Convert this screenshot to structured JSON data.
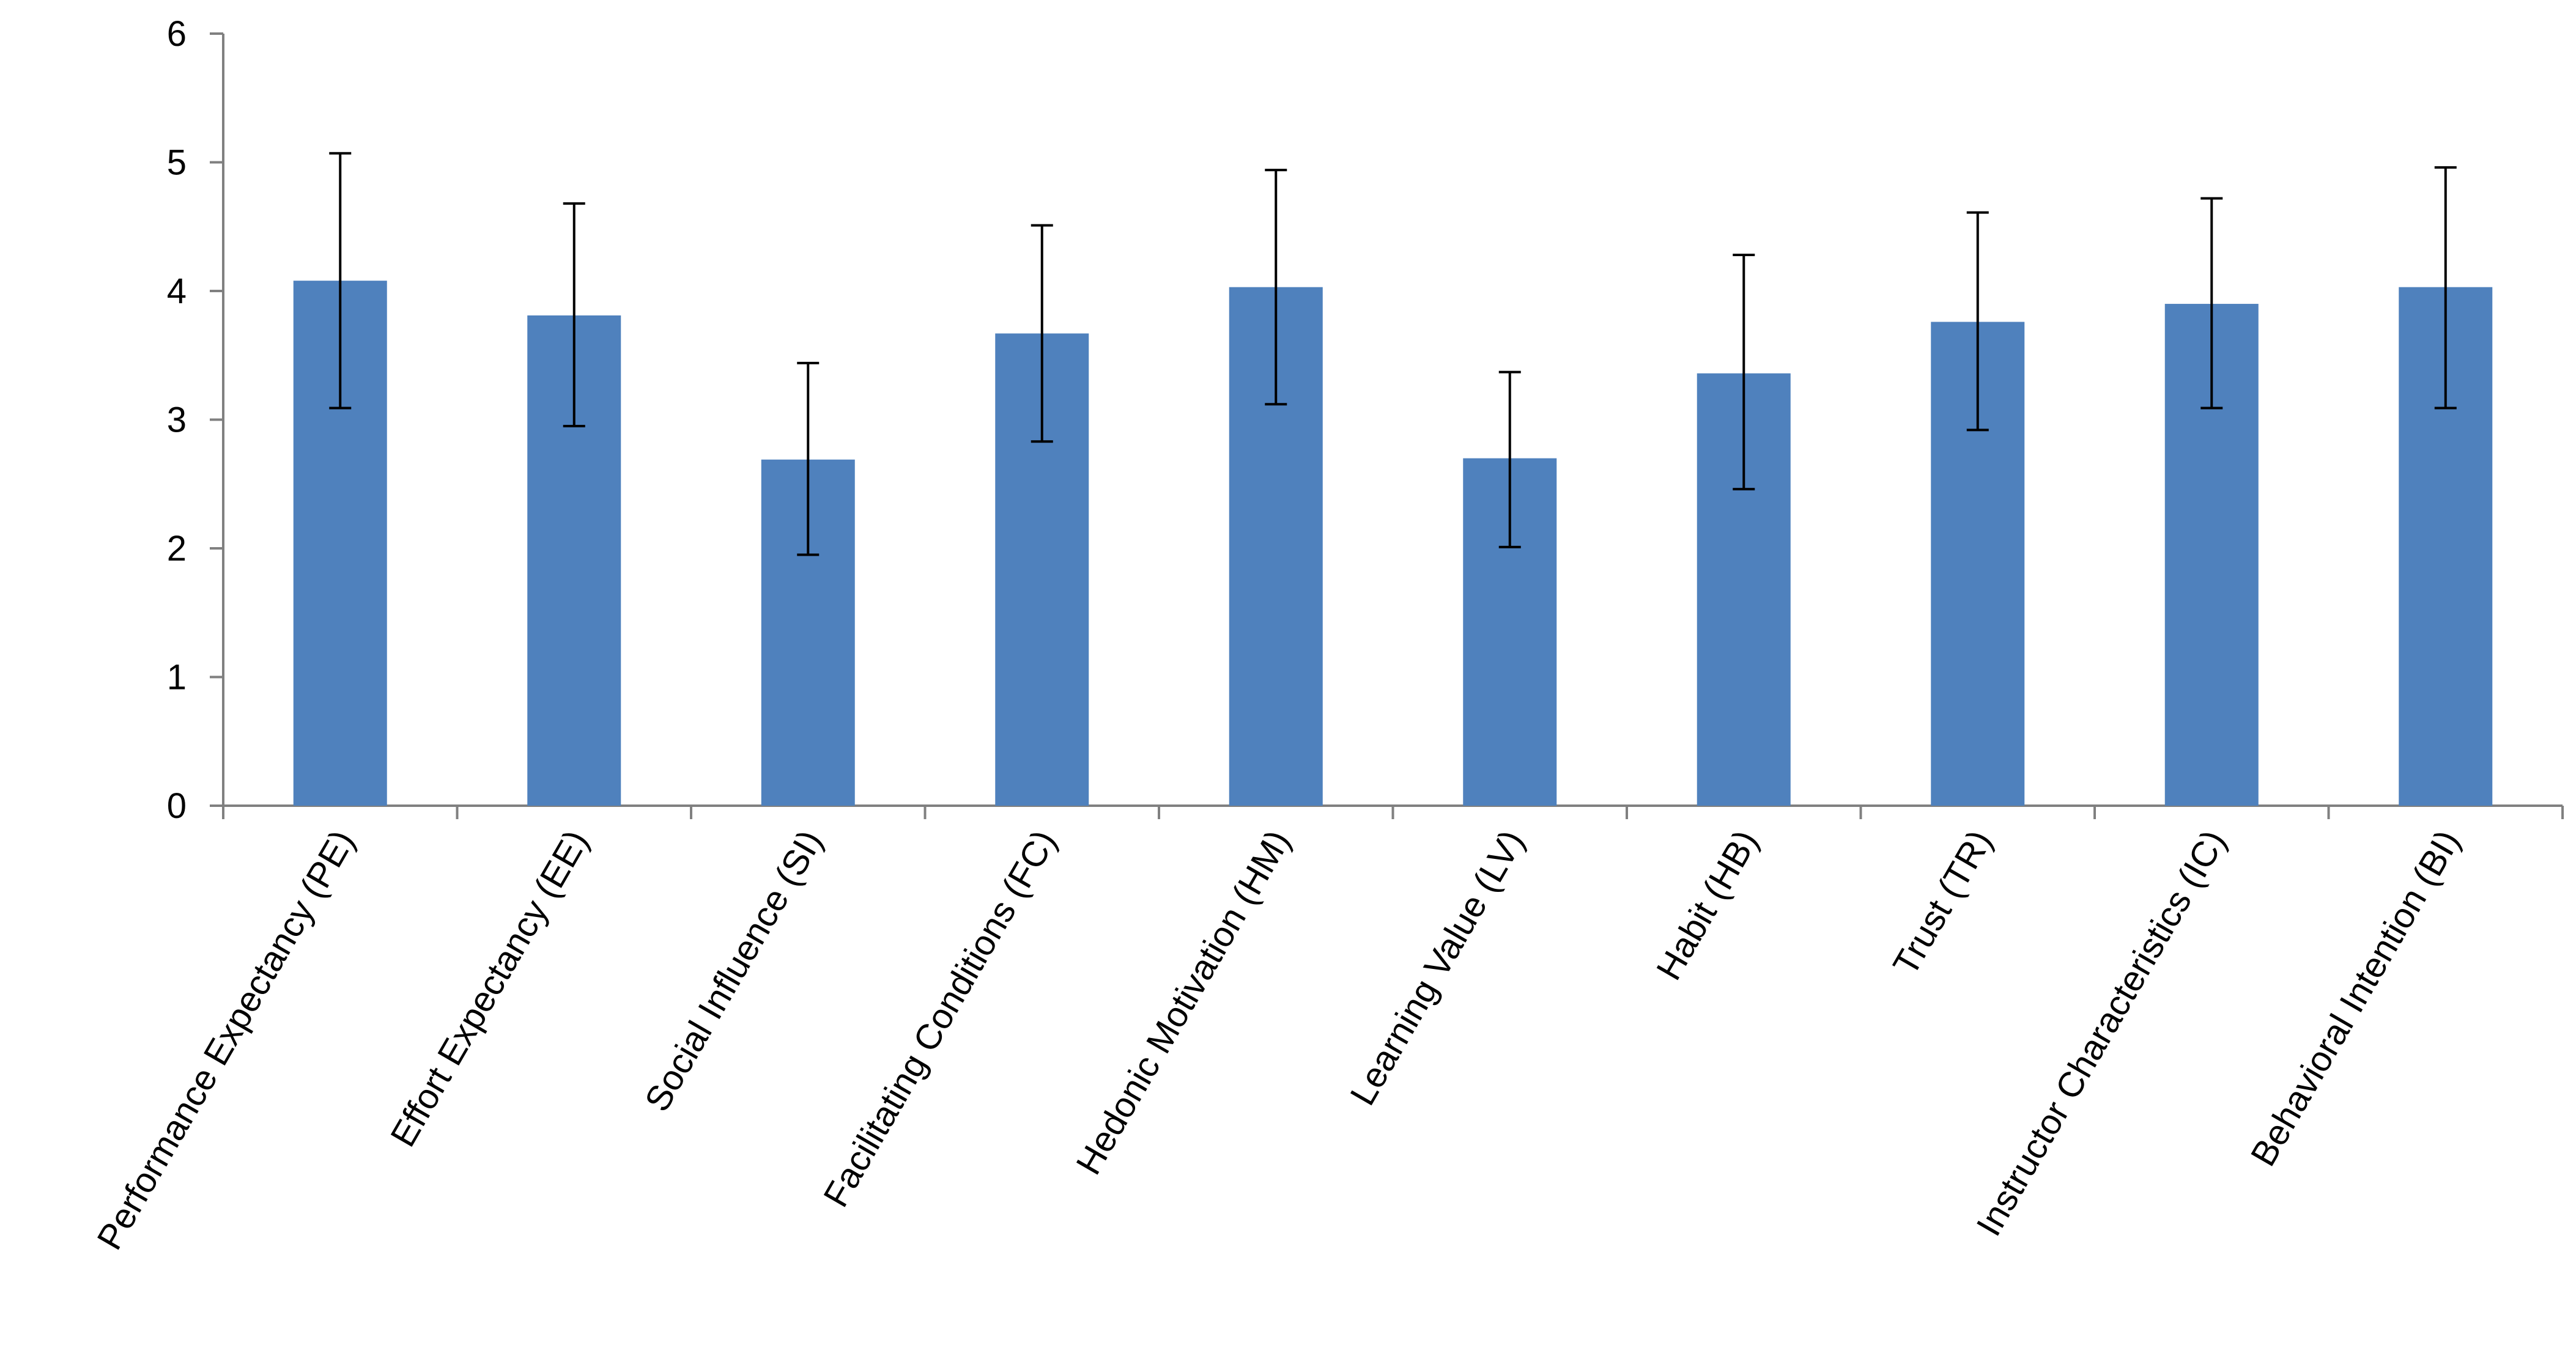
{
  "chart_data": {
    "type": "bar",
    "title": "",
    "xlabel": "",
    "ylabel": "",
    "categories": [
      "Performance Expectancy (PE)",
      "Effort Expectancy (EE)",
      "Social Influence (SI)",
      "Facilitating Conditions (FC)",
      "Hedonic Motivation (HM)",
      "Learning Value (LV)",
      "Habit (HB)",
      "Trust (TR)",
      "Instructor Characteristics (IC)",
      "Behavioral Intention (BI)"
    ],
    "values": [
      4.08,
      3.81,
      2.69,
      3.67,
      4.03,
      2.7,
      3.36,
      3.76,
      3.9,
      4.03
    ],
    "error_low": [
      3.09,
      2.95,
      1.95,
      2.83,
      3.12,
      2.01,
      2.46,
      2.92,
      3.09,
      3.09
    ],
    "error_high": [
      5.07,
      4.68,
      3.44,
      4.51,
      4.94,
      3.37,
      4.28,
      4.61,
      4.72,
      4.96
    ],
    "ylim": [
      0,
      6
    ],
    "yticks": [
      "0",
      "1",
      "2",
      "3",
      "4",
      "5",
      "6"
    ],
    "grid": false,
    "legend": "none",
    "bar_color": "#4f81bd"
  }
}
